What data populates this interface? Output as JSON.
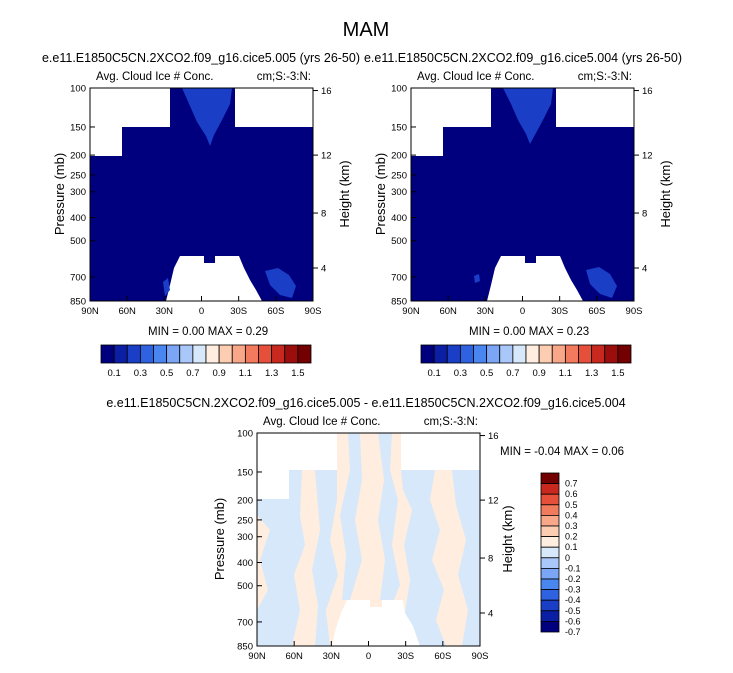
{
  "page_title": "MAM",
  "colors": {
    "abs_scale": [
      "#00007f",
      "#0a1fa4",
      "#1a3ec6",
      "#2f62e0",
      "#4a86ef",
      "#7aa6f5",
      "#a9c7f8",
      "#d7e8fb",
      "#ffeedf",
      "#fccdb0",
      "#f8a789",
      "#f27b5e",
      "#e6503a",
      "#c8281d",
      "#9b0e0c",
      "#720000"
    ],
    "diff_scale": [
      "#00007f",
      "#0a1fa4",
      "#1a3ec6",
      "#2f62e0",
      "#4a86ef",
      "#7aa6f5",
      "#a9c7f8",
      "#d7e8fb",
      "#ffeedf",
      "#fccdb0",
      "#f8a789",
      "#f27b5e",
      "#e6503a",
      "#c8281d",
      "#720000"
    ]
  },
  "chart_data": [
    {
      "type": "heatmap",
      "id": "panel-a",
      "title": "e.e11.E1850C5CN.2XCO2.f09_g16.cice5.005 (yrs 26-50)",
      "left_label": "Avg. Cloud Ice # Conc.",
      "right_label": "cm;S:-3:N:",
      "xlabel": "",
      "ylabel": "Pressure (mb)",
      "y2label": "Height (km)",
      "x_ticks": [
        "90N",
        "60N",
        "30N",
        "0",
        "30S",
        "60S",
        "90S"
      ],
      "y_ticks": [
        "100",
        "150",
        "200",
        "250",
        "300",
        "400",
        "500",
        "700",
        "850"
      ],
      "y2_ticks": [
        "16",
        "12",
        "8",
        "4"
      ],
      "stats": "MIN =  0.00  MAX =  0.29",
      "min": 0.0,
      "max": 0.29
    },
    {
      "type": "heatmap",
      "id": "panel-b",
      "title": "e.e11.E1850C5CN.2XCO2.f09_g16.cice5.004 (yrs 26-50)",
      "left_label": "Avg. Cloud Ice # Conc.",
      "right_label": "cm;S:-3:N:",
      "xlabel": "",
      "ylabel": "Pressure (mb)",
      "y2label": "Height (km)",
      "x_ticks": [
        "90N",
        "60N",
        "30N",
        "0",
        "30S",
        "60S",
        "90S"
      ],
      "y_ticks": [
        "100",
        "150",
        "200",
        "250",
        "300",
        "400",
        "500",
        "700",
        "850"
      ],
      "y2_ticks": [
        "16",
        "12",
        "8",
        "4"
      ],
      "stats": "MIN =  0.00  MAX =  0.23",
      "min": 0.0,
      "max": 0.23
    },
    {
      "type": "heatmap",
      "id": "panel-diff",
      "title": "e.e11.E1850C5CN.2XCO2.f09_g16.cice5.005 - e.e11.E1850C5CN.2XCO2.f09_g16.cice5.004",
      "left_label": "Avg. Cloud Ice # Conc.",
      "right_label": "cm;S:-3:N:",
      "xlabel": "",
      "ylabel": "Pressure (mb)",
      "y2label": "Height (km)",
      "x_ticks": [
        "90N",
        "60N",
        "30N",
        "0",
        "30S",
        "60S",
        "90S"
      ],
      "y_ticks": [
        "100",
        "150",
        "200",
        "250",
        "300",
        "400",
        "500",
        "700",
        "850"
      ],
      "y2_ticks": [
        "16",
        "12",
        "8",
        "4"
      ],
      "stats": "MIN =  -0.04  MAX =  0.06",
      "min": -0.04,
      "max": 0.06
    }
  ],
  "abs_colorbar": {
    "labels": [
      "0.1",
      "0.3",
      "0.5",
      "0.7",
      "0.9",
      "1.1",
      "1.3",
      "1.5"
    ]
  },
  "diff_colorbar": {
    "labels": [
      "0.7",
      "0.6",
      "0.5",
      "0.4",
      "0.3",
      "0.2",
      "0.1",
      "0",
      "-0.1",
      "-0.2",
      "-0.3",
      "-0.4",
      "-0.5",
      "-0.6",
      "-0.7"
    ]
  }
}
